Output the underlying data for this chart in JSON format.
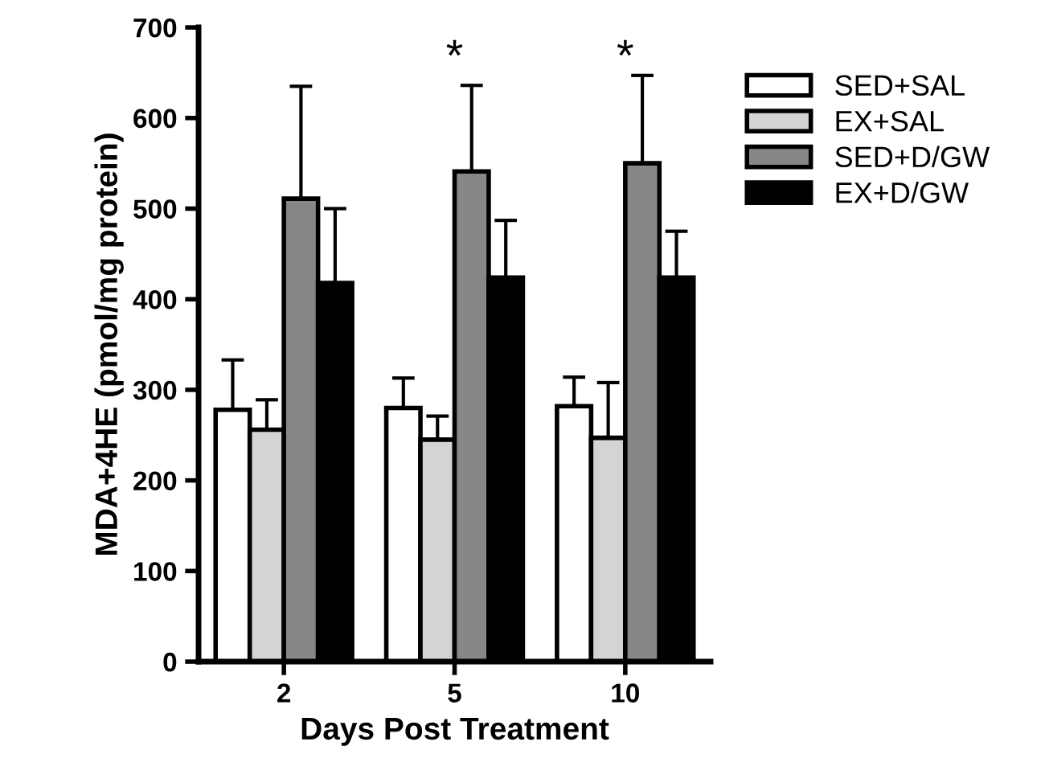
{
  "chart_data": {
    "type": "bar",
    "xlabel": "Days Post Treatment",
    "ylabel": "MDA+4HE (pmol/mg protein)",
    "categories": [
      "2",
      "5",
      "10"
    ],
    "series": [
      {
        "name": "SED+SAL",
        "color": "#ffffff",
        "values": [
          278,
          280,
          282
        ],
        "errors": [
          [
            278,
            333
          ],
          [
            280,
            313
          ],
          [
            282,
            314
          ]
        ]
      },
      {
        "name": "EX+SAL",
        "color": "#d4d4d4",
        "values": [
          256,
          245,
          247
        ],
        "errors": [
          [
            256,
            289
          ],
          [
            245,
            271
          ],
          [
            247,
            308
          ]
        ]
      },
      {
        "name": "SED+D/GW",
        "color": "#878787",
        "values": [
          511,
          541,
          550
        ],
        "errors": [
          [
            511,
            635
          ],
          [
            541,
            636
          ],
          [
            550,
            647
          ]
        ]
      },
      {
        "name": "EX+D/GW",
        "color": "#000000",
        "values": [
          418,
          424,
          424
        ],
        "errors": [
          [
            418,
            500
          ],
          [
            424,
            487
          ],
          [
            424,
            475
          ]
        ]
      }
    ],
    "annotations": [
      "*",
      "*"
    ],
    "ylim": [
      0,
      700
    ],
    "yticks": [
      0,
      100,
      200,
      300,
      400,
      500,
      600,
      700
    ],
    "grid": false,
    "legend": "right"
  }
}
